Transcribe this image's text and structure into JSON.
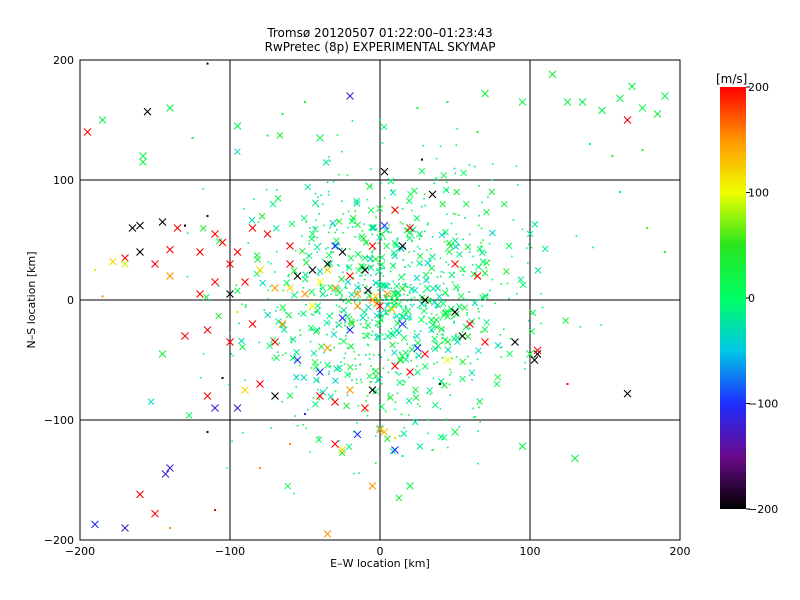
{
  "chart_data": {
    "type": "scatter",
    "title": "Tromsø 20120507 01:22:00–01:23:43",
    "subtitle": "RwPretec (8p) EXPERIMENTAL SKYMAP",
    "xlabel": "E–W location [km]",
    "ylabel": "N–S location [km]",
    "xlim": [
      -200,
      200
    ],
    "ylim": [
      -200,
      200
    ],
    "xticks": [
      -200,
      -100,
      0,
      100,
      200
    ],
    "yticks": [
      -200,
      -100,
      0,
      100,
      200
    ],
    "grid": true,
    "marker_types": [
      "x",
      "dot"
    ],
    "colorbar": {
      "label": "[m/s]",
      "min": -200,
      "max": 200,
      "ticks": [
        -200,
        -100,
        0,
        100,
        200
      ],
      "colormap": [
        "#000000",
        "#6a0a8c",
        "#1e2dff",
        "#00c8e6",
        "#00ff64",
        "#28e61e",
        "#f0ff00",
        "#ff9600",
        "#ff0000"
      ]
    },
    "points": [
      {
        "x": -195,
        "y": 140,
        "v": 200,
        "m": "x"
      },
      {
        "x": -185,
        "y": 150,
        "v": 20,
        "m": "x"
      },
      {
        "x": -155,
        "y": 157,
        "v": -200,
        "m": "x"
      },
      {
        "x": -140,
        "y": 160,
        "v": 20,
        "m": "x"
      },
      {
        "x": -115,
        "y": 197,
        "v": -200,
        "m": "dot"
      },
      {
        "x": -158,
        "y": 120,
        "v": 20,
        "m": "x"
      },
      {
        "x": -158,
        "y": 115,
        "v": 20,
        "m": "x"
      },
      {
        "x": -125,
        "y": 135,
        "v": 20,
        "m": "dot"
      },
      {
        "x": -95,
        "y": 145,
        "v": 20,
        "m": "x"
      },
      {
        "x": -75,
        "y": 137,
        "v": 20,
        "m": "dot"
      },
      {
        "x": -65,
        "y": 155,
        "v": 20,
        "m": "dot"
      },
      {
        "x": -50,
        "y": 165,
        "v": 20,
        "m": "dot"
      },
      {
        "x": -40,
        "y": 135,
        "v": 20,
        "m": "x"
      },
      {
        "x": -20,
        "y": 170,
        "v": -120,
        "m": "x"
      },
      {
        "x": 0,
        "y": 150,
        "v": 20,
        "m": "dot"
      },
      {
        "x": 25,
        "y": 160,
        "v": 20,
        "m": "dot"
      },
      {
        "x": 45,
        "y": 165,
        "v": 20,
        "m": "dot"
      },
      {
        "x": 65,
        "y": 140,
        "v": 20,
        "m": "dot"
      },
      {
        "x": 70,
        "y": 172,
        "v": 20,
        "m": "x"
      },
      {
        "x": 95,
        "y": 165,
        "v": 20,
        "m": "x"
      },
      {
        "x": 115,
        "y": 188,
        "v": 30,
        "m": "x"
      },
      {
        "x": 125,
        "y": 165,
        "v": 20,
        "m": "x"
      },
      {
        "x": 135,
        "y": 165,
        "v": 20,
        "m": "x"
      },
      {
        "x": 148,
        "y": 158,
        "v": 20,
        "m": "x"
      },
      {
        "x": 160,
        "y": 168,
        "v": 20,
        "m": "x"
      },
      {
        "x": 165,
        "y": 150,
        "v": 200,
        "m": "x"
      },
      {
        "x": 175,
        "y": 160,
        "v": 20,
        "m": "x"
      },
      {
        "x": 185,
        "y": 155,
        "v": 30,
        "m": "x"
      },
      {
        "x": 190,
        "y": 170,
        "v": 20,
        "m": "x"
      },
      {
        "x": 168,
        "y": 178,
        "v": 20,
        "m": "x"
      },
      {
        "x": 140,
        "y": 130,
        "v": 20,
        "m": "dot"
      },
      {
        "x": 155,
        "y": 120,
        "v": 20,
        "m": "dot"
      },
      {
        "x": 175,
        "y": 125,
        "v": 20,
        "m": "dot"
      },
      {
        "x": 160,
        "y": 90,
        "v": 20,
        "m": "dot"
      },
      {
        "x": 178,
        "y": 60,
        "v": 60,
        "m": "dot"
      },
      {
        "x": 190,
        "y": 40,
        "v": 20,
        "m": "dot"
      },
      {
        "x": 3,
        "y": 107,
        "v": -200,
        "m": "x"
      },
      {
        "x": 28,
        "y": 117,
        "v": -200,
        "m": "dot"
      },
      {
        "x": 35,
        "y": 88,
        "v": -200,
        "m": "x"
      },
      {
        "x": 3,
        "y": 62,
        "v": -100,
        "m": "x"
      },
      {
        "x": -145,
        "y": 65,
        "v": -200,
        "m": "x"
      },
      {
        "x": -160,
        "y": 62,
        "v": -200,
        "m": "x"
      },
      {
        "x": -165,
        "y": 60,
        "v": -200,
        "m": "x"
      },
      {
        "x": -135,
        "y": 60,
        "v": 200,
        "m": "x"
      },
      {
        "x": -130,
        "y": 62,
        "v": -200,
        "m": "dot"
      },
      {
        "x": -115,
        "y": 70,
        "v": -200,
        "m": "dot"
      },
      {
        "x": -110,
        "y": 55,
        "v": 200,
        "m": "x"
      },
      {
        "x": -105,
        "y": 48,
        "v": 200,
        "m": "x"
      },
      {
        "x": -95,
        "y": 40,
        "v": 200,
        "m": "x"
      },
      {
        "x": -85,
        "y": 60,
        "v": 200,
        "m": "x"
      },
      {
        "x": -75,
        "y": 55,
        "v": 200,
        "m": "x"
      },
      {
        "x": -60,
        "y": 45,
        "v": 200,
        "m": "x"
      },
      {
        "x": -170,
        "y": 35,
        "v": 200,
        "m": "x"
      },
      {
        "x": -160,
        "y": 40,
        "v": -200,
        "m": "x"
      },
      {
        "x": -150,
        "y": 30,
        "v": 200,
        "m": "x"
      },
      {
        "x": -140,
        "y": 20,
        "v": 150,
        "m": "x"
      },
      {
        "x": -178,
        "y": 32,
        "v": 120,
        "m": "x"
      },
      {
        "x": -170,
        "y": 30,
        "v": 90,
        "m": "x"
      },
      {
        "x": -190,
        "y": 25,
        "v": 90,
        "m": "dot"
      },
      {
        "x": -140,
        "y": 42,
        "v": 200,
        "m": "x"
      },
      {
        "x": -120,
        "y": 40,
        "v": 200,
        "m": "x"
      },
      {
        "x": -100,
        "y": 30,
        "v": 200,
        "m": "x"
      },
      {
        "x": -110,
        "y": 15,
        "v": 200,
        "m": "x"
      },
      {
        "x": -120,
        "y": 5,
        "v": 200,
        "m": "x"
      },
      {
        "x": -100,
        "y": 5,
        "v": -200,
        "m": "x"
      },
      {
        "x": -90,
        "y": 15,
        "v": 200,
        "m": "x"
      },
      {
        "x": -80,
        "y": 25,
        "v": 120,
        "m": "x"
      },
      {
        "x": -70,
        "y": 10,
        "v": 150,
        "m": "x"
      },
      {
        "x": -60,
        "y": 30,
        "v": 200,
        "m": "x"
      },
      {
        "x": -55,
        "y": 20,
        "v": -200,
        "m": "x"
      },
      {
        "x": -50,
        "y": 5,
        "v": 150,
        "m": "x"
      },
      {
        "x": -45,
        "y": 25,
        "v": -200,
        "m": "x"
      },
      {
        "x": -40,
        "y": 15,
        "v": 100,
        "m": "x"
      },
      {
        "x": -35,
        "y": 30,
        "v": -200,
        "m": "x"
      },
      {
        "x": -30,
        "y": 10,
        "v": 150,
        "m": "x"
      },
      {
        "x": -25,
        "y": 40,
        "v": -200,
        "m": "x"
      },
      {
        "x": -20,
        "y": 20,
        "v": 200,
        "m": "x"
      },
      {
        "x": -15,
        "y": 5,
        "v": 150,
        "m": "x"
      },
      {
        "x": -10,
        "y": 25,
        "v": -200,
        "m": "x"
      },
      {
        "x": -5,
        "y": 0,
        "v": 150,
        "m": "x"
      },
      {
        "x": -2,
        "y": -3,
        "v": 150,
        "m": "x"
      },
      {
        "x": -8,
        "y": 8,
        "v": -200,
        "m": "x"
      },
      {
        "x": -30,
        "y": 45,
        "v": -100,
        "m": "x"
      },
      {
        "x": -20,
        "y": -25,
        "v": -100,
        "m": "x"
      },
      {
        "x": -45,
        "y": -5,
        "v": 100,
        "m": "x"
      },
      {
        "x": -55,
        "y": -50,
        "v": -100,
        "m": "x"
      },
      {
        "x": -35,
        "y": -40,
        "v": 150,
        "m": "x"
      },
      {
        "x": -70,
        "y": -35,
        "v": 200,
        "m": "x"
      },
      {
        "x": -85,
        "y": -20,
        "v": 200,
        "m": "x"
      },
      {
        "x": -100,
        "y": -35,
        "v": 200,
        "m": "x"
      },
      {
        "x": -115,
        "y": -25,
        "v": 200,
        "m": "x"
      },
      {
        "x": -130,
        "y": -30,
        "v": 200,
        "m": "x"
      },
      {
        "x": -145,
        "y": -45,
        "v": 30,
        "m": "x"
      },
      {
        "x": -105,
        "y": -65,
        "v": -200,
        "m": "dot"
      },
      {
        "x": -80,
        "y": -70,
        "v": 200,
        "m": "x"
      },
      {
        "x": -90,
        "y": -75,
        "v": 120,
        "m": "x"
      },
      {
        "x": -70,
        "y": -80,
        "v": -200,
        "m": "x"
      },
      {
        "x": -115,
        "y": -80,
        "v": 200,
        "m": "x"
      },
      {
        "x": -110,
        "y": -90,
        "v": -120,
        "m": "x"
      },
      {
        "x": -50,
        "y": -95,
        "v": -100,
        "m": "dot"
      },
      {
        "x": -40,
        "y": -80,
        "v": 200,
        "m": "x"
      },
      {
        "x": -30,
        "y": -85,
        "v": 200,
        "m": "x"
      },
      {
        "x": -20,
        "y": -75,
        "v": 150,
        "m": "x"
      },
      {
        "x": -10,
        "y": -90,
        "v": 200,
        "m": "x"
      },
      {
        "x": 20,
        "y": -60,
        "v": 200,
        "m": "x"
      },
      {
        "x": 30,
        "y": -45,
        "v": 200,
        "m": "x"
      },
      {
        "x": 45,
        "y": -50,
        "v": 100,
        "m": "x"
      },
      {
        "x": 55,
        "y": -30,
        "v": -200,
        "m": "x"
      },
      {
        "x": 70,
        "y": -35,
        "v": 200,
        "m": "x"
      },
      {
        "x": 90,
        "y": -35,
        "v": -200,
        "m": "x"
      },
      {
        "x": 100,
        "y": -45,
        "v": 30,
        "m": "x"
      },
      {
        "x": 105,
        "y": -45,
        "v": -200,
        "m": "x"
      },
      {
        "x": 105,
        "y": -42,
        "v": 200,
        "m": "x"
      },
      {
        "x": 103,
        "y": -50,
        "v": -200,
        "m": "x"
      },
      {
        "x": 125,
        "y": -70,
        "v": 200,
        "m": "dot"
      },
      {
        "x": 165,
        "y": -78,
        "v": -200,
        "m": "x"
      },
      {
        "x": 130,
        "y": -132,
        "v": 20,
        "m": "x"
      },
      {
        "x": 95,
        "y": -122,
        "v": 20,
        "m": "x"
      },
      {
        "x": 50,
        "y": -110,
        "v": 20,
        "m": "x"
      },
      {
        "x": 35,
        "y": -125,
        "v": 20,
        "m": "dot"
      },
      {
        "x": 15,
        "y": -130,
        "v": 20,
        "m": "dot"
      },
      {
        "x": 20,
        "y": -155,
        "v": 20,
        "m": "x"
      },
      {
        "x": 0,
        "y": -108,
        "v": 150,
        "m": "x"
      },
      {
        "x": 3,
        "y": -110,
        "v": 130,
        "m": "x"
      },
      {
        "x": 10,
        "y": -115,
        "v": 120,
        "m": "dot"
      },
      {
        "x": -30,
        "y": -120,
        "v": 200,
        "m": "x"
      },
      {
        "x": -25,
        "y": -125,
        "v": 120,
        "m": "x"
      },
      {
        "x": -15,
        "y": -112,
        "v": -100,
        "m": "x"
      },
      {
        "x": 10,
        "y": -125,
        "v": -100,
        "m": "x"
      },
      {
        "x": -5,
        "y": -155,
        "v": 150,
        "m": "x"
      },
      {
        "x": -35,
        "y": -195,
        "v": 150,
        "m": "x"
      },
      {
        "x": -95,
        "y": -90,
        "v": -120,
        "m": "x"
      },
      {
        "x": -115,
        "y": -110,
        "v": -200,
        "m": "dot"
      },
      {
        "x": -140,
        "y": -140,
        "v": -120,
        "m": "x"
      },
      {
        "x": -143,
        "y": -145,
        "v": -120,
        "m": "x"
      },
      {
        "x": -160,
        "y": -162,
        "v": 200,
        "m": "x"
      },
      {
        "x": -170,
        "y": -190,
        "v": -120,
        "m": "x"
      },
      {
        "x": -190,
        "y": -187,
        "v": -100,
        "m": "x"
      },
      {
        "x": -150,
        "y": -178,
        "v": 200,
        "m": "x"
      },
      {
        "x": -140,
        "y": -190,
        "v": 150,
        "m": "dot"
      },
      {
        "x": -110,
        "y": -175,
        "v": 200,
        "m": "dot"
      },
      {
        "x": -185,
        "y": 3,
        "v": 150,
        "m": "dot"
      },
      {
        "x": 30,
        "y": 0,
        "v": -200,
        "m": "x"
      },
      {
        "x": 50,
        "y": -10,
        "v": -200,
        "m": "x"
      },
      {
        "x": 60,
        "y": -20,
        "v": 200,
        "m": "x"
      },
      {
        "x": 65,
        "y": 20,
        "v": 200,
        "m": "x"
      },
      {
        "x": 50,
        "y": 30,
        "v": 200,
        "m": "x"
      },
      {
        "x": 15,
        "y": 45,
        "v": -200,
        "m": "x"
      },
      {
        "x": 20,
        "y": 60,
        "v": 200,
        "m": "x"
      },
      {
        "x": 10,
        "y": 75,
        "v": 200,
        "m": "x"
      },
      {
        "x": -5,
        "y": 45,
        "v": 200,
        "m": "x"
      },
      {
        "x": 40,
        "y": -70,
        "v": -200,
        "m": "dot"
      },
      {
        "x": 10,
        "y": -55,
        "v": 200,
        "m": "x"
      },
      {
        "x": -5,
        "y": -75,
        "v": -200,
        "m": "x"
      },
      {
        "x": 0,
        "y": -5,
        "v": 200,
        "m": "x"
      },
      {
        "x": -3,
        "y": 3,
        "v": 120,
        "m": "x"
      },
      {
        "x": 5,
        "y": 5,
        "v": 150,
        "m": "x"
      },
      {
        "x": 8,
        "y": -8,
        "v": 120,
        "m": "x"
      },
      {
        "x": -15,
        "y": -5,
        "v": 150,
        "m": "x"
      },
      {
        "x": -35,
        "y": 25,
        "v": 120,
        "m": "x"
      },
      {
        "x": -60,
        "y": 10,
        "v": 120,
        "m": "x"
      },
      {
        "x": -65,
        "y": -20,
        "v": 150,
        "m": "x"
      },
      {
        "x": -95,
        "y": -10,
        "v": 120,
        "m": "dot"
      },
      {
        "x": -25,
        "y": -15,
        "v": -100,
        "m": "x"
      },
      {
        "x": 15,
        "y": -20,
        "v": -100,
        "m": "x"
      },
      {
        "x": 25,
        "y": -40,
        "v": -100,
        "m": "x"
      },
      {
        "x": -40,
        "y": -60,
        "v": -100,
        "m": "x"
      },
      {
        "x": -60,
        "y": -120,
        "v": 150,
        "m": "dot"
      },
      {
        "x": -80,
        "y": -140,
        "v": 150,
        "m": "dot"
      }
    ],
    "cloud_note": "dense teal/green cloud centered near origin",
    "cloud": {
      "count": 1000,
      "cx": 0,
      "cy": 0,
      "sx": 45,
      "sy": 55,
      "v_range": [
        -40,
        40
      ]
    }
  }
}
